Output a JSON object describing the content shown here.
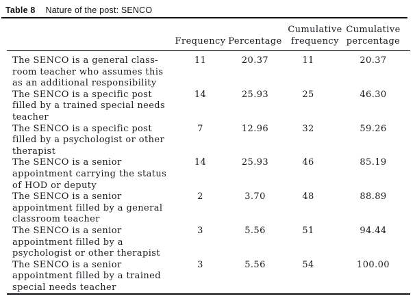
{
  "caption": {
    "label": "Table 8",
    "title": "Nature of the post: SENCO"
  },
  "table": {
    "header": {
      "description": "",
      "columns": [
        {
          "key": "frequency",
          "lines": [
            "Frequency"
          ]
        },
        {
          "key": "percentage",
          "lines": [
            "Percentage"
          ]
        },
        {
          "key": "cumulative-frequency",
          "lines": [
            "Cumulative",
            "frequency"
          ]
        },
        {
          "key": "cumulative-percentage",
          "lines": [
            "Cumulative",
            "percentage"
          ]
        }
      ]
    },
    "rows": [
      {
        "description_lines": [
          "The SENCO is a general class-",
          "room teacher who assumes this",
          "as an additional responsibility"
        ],
        "frequency": "11",
        "percentage": "20.37",
        "cumulative_frequency": "11",
        "cumulative_percentage": "20.37"
      },
      {
        "description_lines": [
          "The SENCO is a specific post",
          "filled by a trained special needs",
          "teacher"
        ],
        "frequency": "14",
        "percentage": "25.93",
        "cumulative_frequency": "25",
        "cumulative_percentage": "46.30"
      },
      {
        "description_lines": [
          "The SENCO is a specific post",
          "filled by a psychologist or other",
          "therapist"
        ],
        "frequency": "7",
        "percentage": "12.96",
        "cumulative_frequency": "32",
        "cumulative_percentage": "59.26"
      },
      {
        "description_lines": [
          "The SENCO is a senior",
          "appointment carrying the status",
          "of HOD or deputy"
        ],
        "frequency": "14",
        "percentage": "25.93",
        "cumulative_frequency": "46",
        "cumulative_percentage": "85.19"
      },
      {
        "description_lines": [
          "The SENCO is a senior",
          "appointment filled by a general",
          "classroom teacher"
        ],
        "frequency": "2",
        "percentage": "3.70",
        "cumulative_frequency": "48",
        "cumulative_percentage": "88.89"
      },
      {
        "description_lines": [
          "The SENCO is a senior",
          "appointment filled by a",
          "psychologist or other therapist"
        ],
        "frequency": "3",
        "percentage": "5.56",
        "cumulative_frequency": "51",
        "cumulative_percentage": "94.44"
      },
      {
        "description_lines": [
          "The SENCO is a senior",
          "appointment filled by a trained",
          "special needs teacher"
        ],
        "frequency": "3",
        "percentage": "5.56",
        "cumulative_frequency": "54",
        "cumulative_percentage": "100.00"
      }
    ]
  },
  "colors": {
    "background": "#ffffff",
    "text": "#1b1b20",
    "rule": "#101016"
  }
}
